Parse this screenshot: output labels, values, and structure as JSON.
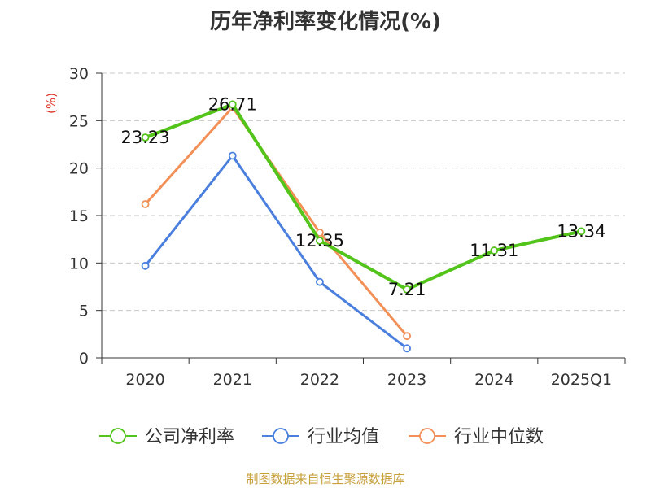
{
  "title": "历年净利率变化情况(%)",
  "source": "制图数据来自恒生聚源数据库",
  "chart_data": {
    "type": "line",
    "title": "历年净利率变化情况(%)",
    "ylabel": "(%)",
    "xlabel": "",
    "ylim": [
      0,
      30
    ],
    "yticks": [
      0,
      5,
      10,
      15,
      20,
      25,
      30
    ],
    "categories": [
      "2020",
      "2021",
      "2022",
      "2023",
      "2024",
      "2025Q1"
    ],
    "series": [
      {
        "name": "公司净利率",
        "color": "#52c41a",
        "values": [
          23.23,
          26.71,
          12.35,
          7.21,
          11.31,
          13.34
        ],
        "labels": [
          "23.23",
          "26.71",
          "12.35",
          "7.21",
          "11.31",
          "13.34"
        ]
      },
      {
        "name": "行业均值",
        "color": "#4a7fde",
        "values": [
          9.7,
          21.3,
          8.0,
          1.0,
          null,
          null
        ]
      },
      {
        "name": "行业中位数",
        "color": "#f39058",
        "values": [
          16.2,
          26.4,
          13.2,
          2.3,
          null,
          null
        ]
      }
    ],
    "grid": true,
    "legend": "bottom"
  }
}
